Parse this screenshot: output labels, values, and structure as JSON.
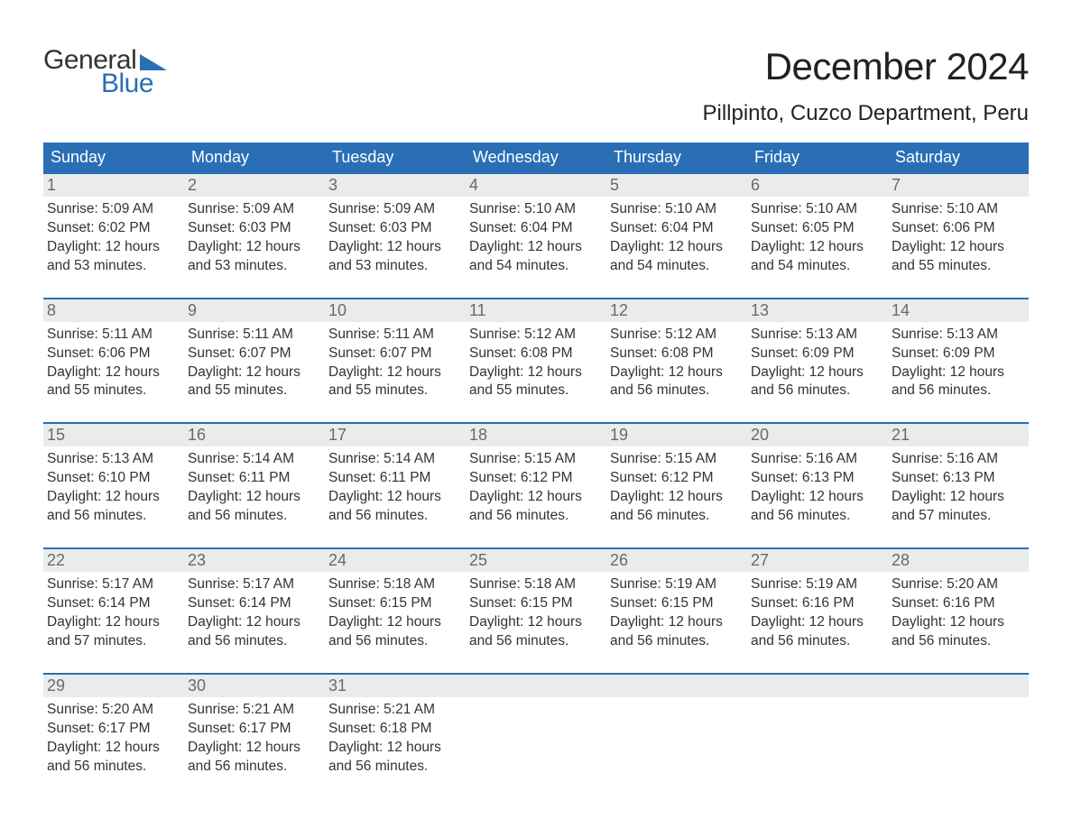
{
  "logo": {
    "word1": "General",
    "word2": "Blue",
    "accent_color": "#2a6fb5"
  },
  "title": "December 2024",
  "location": "Pillpinto, Cuzco Department, Peru",
  "colors": {
    "header_bg": "#2a6fb5",
    "header_text": "#ffffff",
    "daynum_bg": "#ebebeb",
    "daynum_text": "#6a6a6a",
    "body_text": "#333333",
    "week_border": "#2a6fb5",
    "page_bg": "#ffffff"
  },
  "typography": {
    "title_fontsize": 42,
    "location_fontsize": 24,
    "dow_fontsize": 18,
    "daynum_fontsize": 18,
    "body_fontsize": 15.5
  },
  "days_of_week": [
    "Sunday",
    "Monday",
    "Tuesday",
    "Wednesday",
    "Thursday",
    "Friday",
    "Saturday"
  ],
  "labels": {
    "sunrise": "Sunrise:",
    "sunset": "Sunset:",
    "daylight": "Daylight:"
  },
  "weeks": [
    [
      {
        "n": "1",
        "sunrise": "5:09 AM",
        "sunset": "6:02 PM",
        "daylight": "12 hours and 53 minutes."
      },
      {
        "n": "2",
        "sunrise": "5:09 AM",
        "sunset": "6:03 PM",
        "daylight": "12 hours and 53 minutes."
      },
      {
        "n": "3",
        "sunrise": "5:09 AM",
        "sunset": "6:03 PM",
        "daylight": "12 hours and 53 minutes."
      },
      {
        "n": "4",
        "sunrise": "5:10 AM",
        "sunset": "6:04 PM",
        "daylight": "12 hours and 54 minutes."
      },
      {
        "n": "5",
        "sunrise": "5:10 AM",
        "sunset": "6:04 PM",
        "daylight": "12 hours and 54 minutes."
      },
      {
        "n": "6",
        "sunrise": "5:10 AM",
        "sunset": "6:05 PM",
        "daylight": "12 hours and 54 minutes."
      },
      {
        "n": "7",
        "sunrise": "5:10 AM",
        "sunset": "6:06 PM",
        "daylight": "12 hours and 55 minutes."
      }
    ],
    [
      {
        "n": "8",
        "sunrise": "5:11 AM",
        "sunset": "6:06 PM",
        "daylight": "12 hours and 55 minutes."
      },
      {
        "n": "9",
        "sunrise": "5:11 AM",
        "sunset": "6:07 PM",
        "daylight": "12 hours and 55 minutes."
      },
      {
        "n": "10",
        "sunrise": "5:11 AM",
        "sunset": "6:07 PM",
        "daylight": "12 hours and 55 minutes."
      },
      {
        "n": "11",
        "sunrise": "5:12 AM",
        "sunset": "6:08 PM",
        "daylight": "12 hours and 55 minutes."
      },
      {
        "n": "12",
        "sunrise": "5:12 AM",
        "sunset": "6:08 PM",
        "daylight": "12 hours and 56 minutes."
      },
      {
        "n": "13",
        "sunrise": "5:13 AM",
        "sunset": "6:09 PM",
        "daylight": "12 hours and 56 minutes."
      },
      {
        "n": "14",
        "sunrise": "5:13 AM",
        "sunset": "6:09 PM",
        "daylight": "12 hours and 56 minutes."
      }
    ],
    [
      {
        "n": "15",
        "sunrise": "5:13 AM",
        "sunset": "6:10 PM",
        "daylight": "12 hours and 56 minutes."
      },
      {
        "n": "16",
        "sunrise": "5:14 AM",
        "sunset": "6:11 PM",
        "daylight": "12 hours and 56 minutes."
      },
      {
        "n": "17",
        "sunrise": "5:14 AM",
        "sunset": "6:11 PM",
        "daylight": "12 hours and 56 minutes."
      },
      {
        "n": "18",
        "sunrise": "5:15 AM",
        "sunset": "6:12 PM",
        "daylight": "12 hours and 56 minutes."
      },
      {
        "n": "19",
        "sunrise": "5:15 AM",
        "sunset": "6:12 PM",
        "daylight": "12 hours and 56 minutes."
      },
      {
        "n": "20",
        "sunrise": "5:16 AM",
        "sunset": "6:13 PM",
        "daylight": "12 hours and 56 minutes."
      },
      {
        "n": "21",
        "sunrise": "5:16 AM",
        "sunset": "6:13 PM",
        "daylight": "12 hours and 57 minutes."
      }
    ],
    [
      {
        "n": "22",
        "sunrise": "5:17 AM",
        "sunset": "6:14 PM",
        "daylight": "12 hours and 57 minutes."
      },
      {
        "n": "23",
        "sunrise": "5:17 AM",
        "sunset": "6:14 PM",
        "daylight": "12 hours and 56 minutes."
      },
      {
        "n": "24",
        "sunrise": "5:18 AM",
        "sunset": "6:15 PM",
        "daylight": "12 hours and 56 minutes."
      },
      {
        "n": "25",
        "sunrise": "5:18 AM",
        "sunset": "6:15 PM",
        "daylight": "12 hours and 56 minutes."
      },
      {
        "n": "26",
        "sunrise": "5:19 AM",
        "sunset": "6:15 PM",
        "daylight": "12 hours and 56 minutes."
      },
      {
        "n": "27",
        "sunrise": "5:19 AM",
        "sunset": "6:16 PM",
        "daylight": "12 hours and 56 minutes."
      },
      {
        "n": "28",
        "sunrise": "5:20 AM",
        "sunset": "6:16 PM",
        "daylight": "12 hours and 56 minutes."
      }
    ],
    [
      {
        "n": "29",
        "sunrise": "5:20 AM",
        "sunset": "6:17 PM",
        "daylight": "12 hours and 56 minutes."
      },
      {
        "n": "30",
        "sunrise": "5:21 AM",
        "sunset": "6:17 PM",
        "daylight": "12 hours and 56 minutes."
      },
      {
        "n": "31",
        "sunrise": "5:21 AM",
        "sunset": "6:18 PM",
        "daylight": "12 hours and 56 minutes."
      },
      null,
      null,
      null,
      null
    ]
  ]
}
